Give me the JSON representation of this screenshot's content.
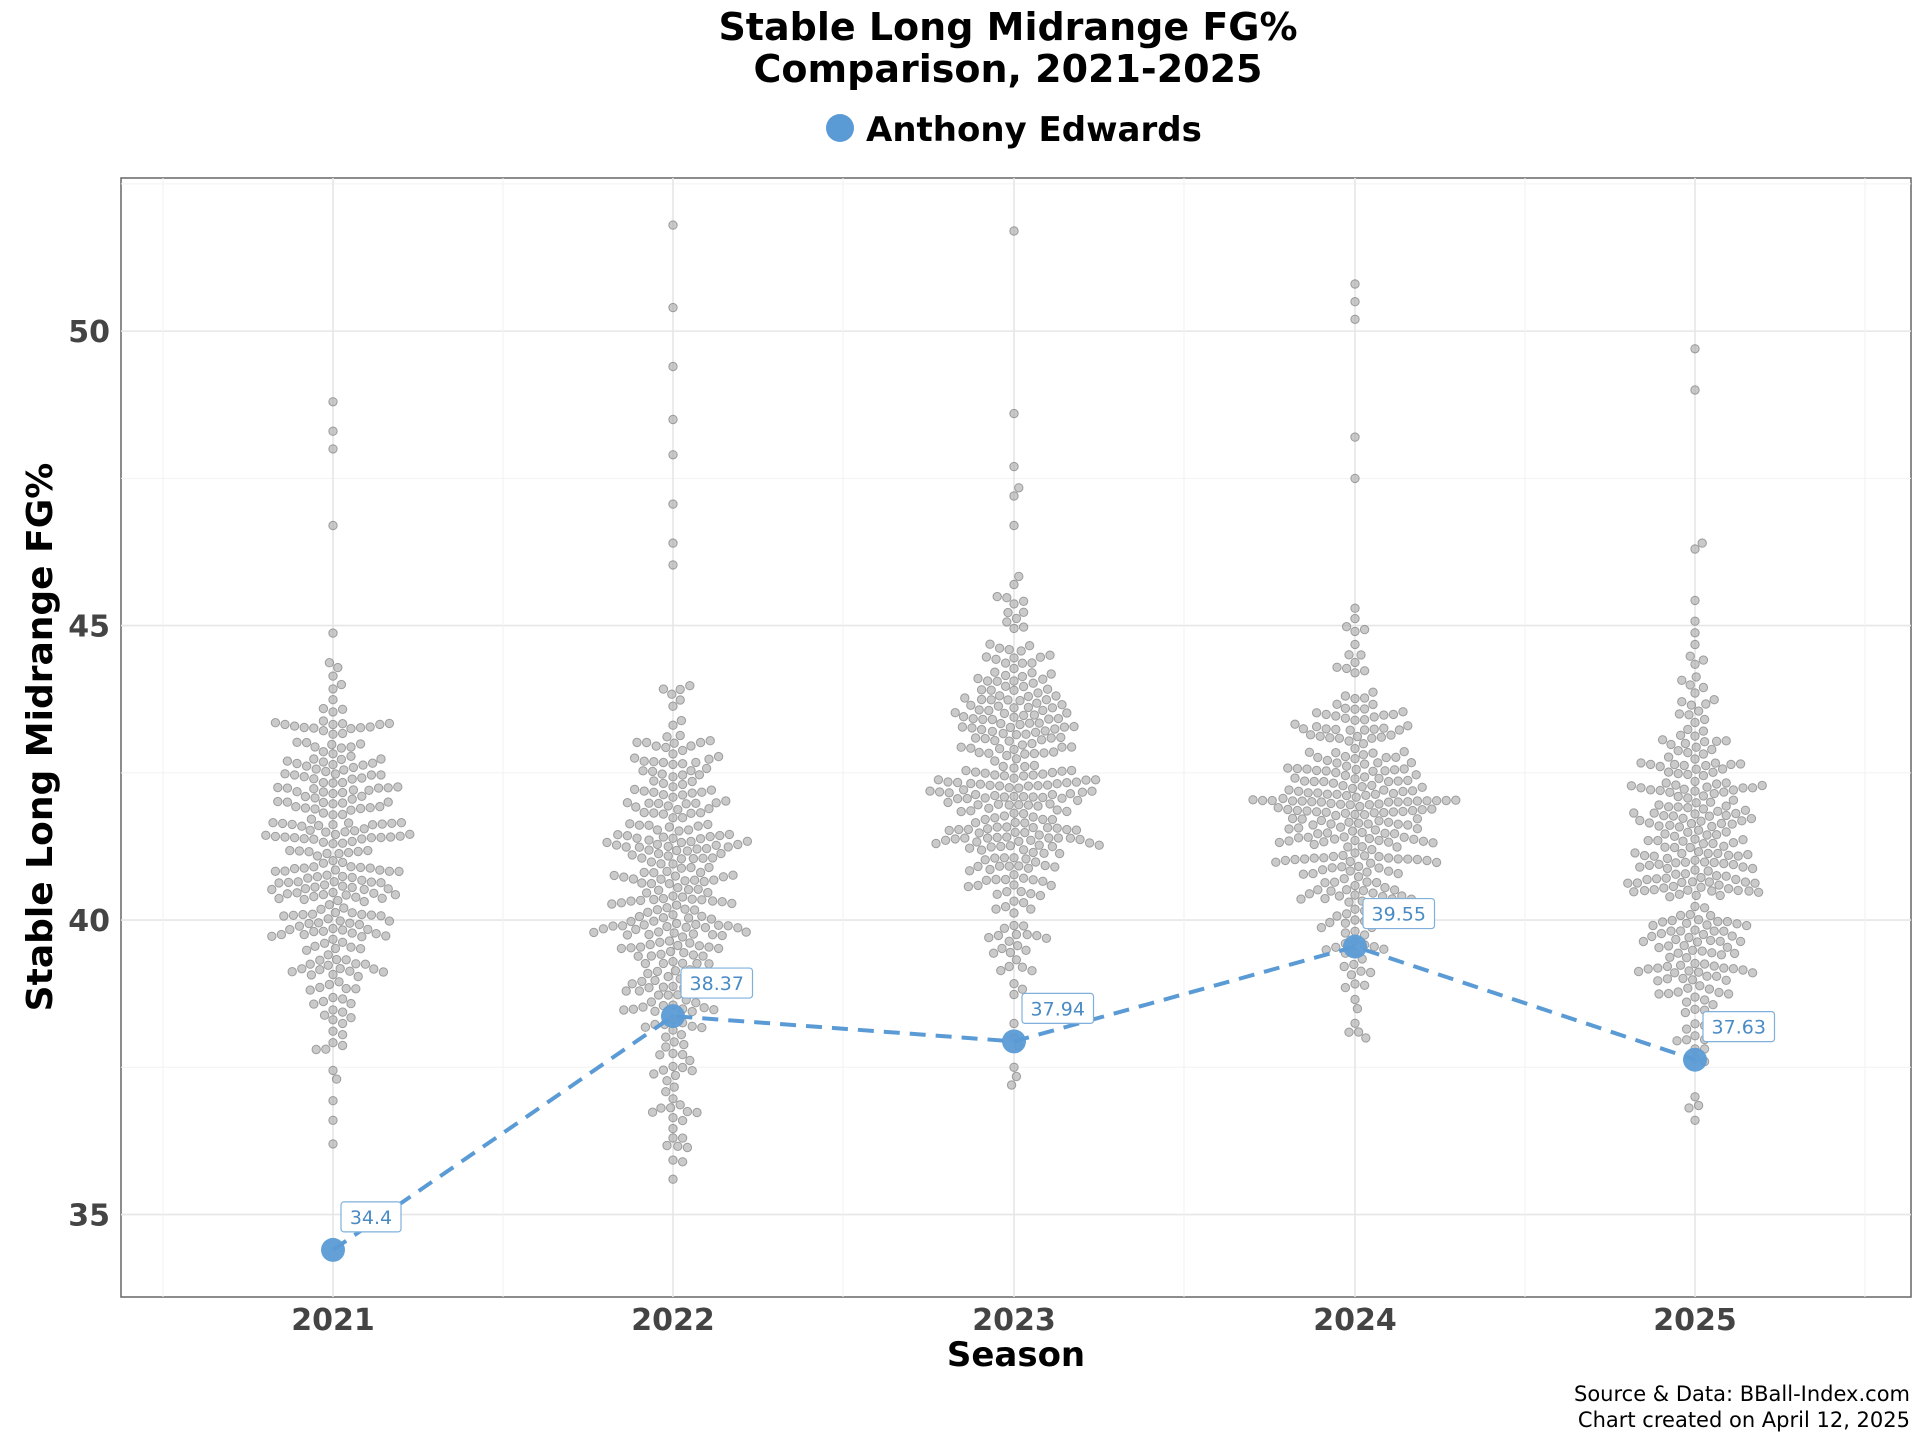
{
  "chart_data": {
    "type": "scatter",
    "title_lines": [
      "Stable Long Midrange FG%",
      "Comparison, 2021-2025"
    ],
    "xlabel": "Season",
    "ylabel": "Stable Long Midrange FG%",
    "categories": [
      "2021",
      "2022",
      "2023",
      "2024",
      "2025"
    ],
    "y_ticks": [
      35,
      40,
      45,
      50
    ],
    "ylim": [
      33.6,
      52.6
    ],
    "grid": true,
    "legend": {
      "position": "top-center",
      "entries": [
        {
          "name": "Anthony Edwards",
          "color": "#5b9bd5"
        }
      ]
    },
    "highlight_series": {
      "name": "Anthony Edwards",
      "color": "#5b9bd5",
      "values": [
        34.4,
        38.37,
        37.94,
        39.55,
        37.63
      ],
      "labels": [
        "34.4",
        "38.37",
        "37.94",
        "39.55",
        "37.63"
      ]
    },
    "league_distribution": {
      "color": "#9e9e9e",
      "description_note": "league players, beeswarm per season",
      "seasons": [
        {
          "season": "2021",
          "median": 41.0,
          "spread": 1.55,
          "min": 36.2,
          "max": 48.8,
          "count": 270,
          "extremes": [
            48.8,
            48.3,
            48.0,
            46.7,
            37.3,
            36.6,
            36.2
          ]
        },
        {
          "season": "2022",
          "median": 40.4,
          "spread": 1.75,
          "min": 35.6,
          "max": 51.8,
          "count": 300,
          "extremes": [
            51.8,
            50.4,
            49.4,
            48.5,
            47.9,
            46.4,
            35.6,
            36.3
          ]
        },
        {
          "season": "2023",
          "median": 42.1,
          "spread": 1.6,
          "min": 37.2,
          "max": 51.7,
          "count": 300,
          "extremes": [
            51.7,
            48.6,
            47.7,
            47.2,
            46.7,
            37.2,
            37.5
          ]
        },
        {
          "season": "2024",
          "median": 41.8,
          "spread": 1.3,
          "min": 38.0,
          "max": 50.8,
          "count": 290,
          "extremes": [
            50.8,
            50.5,
            50.2,
            48.2,
            47.5,
            38.0,
            38.1
          ]
        },
        {
          "season": "2025",
          "median": 41.0,
          "spread": 1.6,
          "min": 36.6,
          "max": 49.7,
          "count": 280,
          "extremes": [
            49.7,
            49.0,
            46.4,
            46.3,
            36.6,
            37.0
          ]
        }
      ]
    },
    "source_lines": [
      "Source & Data: BBall-Index.com",
      "Chart created on April 12, 2025"
    ]
  }
}
